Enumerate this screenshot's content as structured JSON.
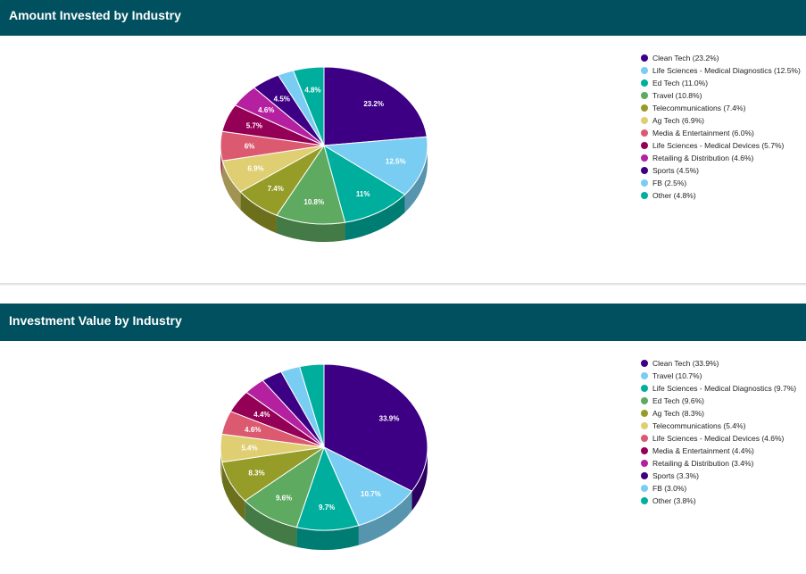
{
  "chart_data": [
    {
      "type": "pie",
      "title": "Amount Invested by Industry",
      "legend_position": "right",
      "series": [
        {
          "name": "Clean Tech",
          "value": 23.2,
          "legend": "Clean Tech (23.2%)",
          "label": "23.2%",
          "color": "#3d0085"
        },
        {
          "name": "Life Sciences - Medical Diagnostics",
          "value": 12.5,
          "legend": "Life Sciences - Medical Diagnostics (12.5%)",
          "label": "12.5%",
          "color": "#79cdf2"
        },
        {
          "name": "Ed Tech",
          "value": 11.0,
          "legend": "Ed Tech (11.0%)",
          "label": "11%",
          "color": "#00ae9e"
        },
        {
          "name": "Travel",
          "value": 10.8,
          "legend": "Travel (10.8%)",
          "label": "10.8%",
          "color": "#5eaa60"
        },
        {
          "name": "Telecommunications",
          "value": 7.4,
          "legend": "Telecommunications (7.4%)",
          "label": "7.4%",
          "color": "#969c28"
        },
        {
          "name": "Ag Tech",
          "value": 6.9,
          "legend": "Ag Tech (6.9%)",
          "label": "6.9%",
          "color": "#dfce72"
        },
        {
          "name": "Media & Entertainment",
          "value": 6.0,
          "legend": "Media & Entertainment (6.0%)",
          "label": "6%",
          "color": "#db5a70"
        },
        {
          "name": "Life Sciences - Medical Devices",
          "value": 5.7,
          "legend": "Life Sciences - Medical Devices (5.7%)",
          "label": "5.7%",
          "color": "#950057"
        },
        {
          "name": "Retailing & Distribution",
          "value": 4.6,
          "legend": "Retailing & Distribution (4.6%)",
          "label": "4.6%",
          "color": "#b520a0"
        },
        {
          "name": "Sports",
          "value": 4.5,
          "legend": "Sports (4.5%)",
          "label": "4.5%",
          "color": "#3d0085"
        },
        {
          "name": "FB",
          "value": 2.5,
          "legend": "FB (2.5%)",
          "label": "",
          "color": "#79cdf2"
        },
        {
          "name": "Other",
          "value": 4.8,
          "legend": "Other (4.8%)",
          "label": "4.8%",
          "color": "#00ae9e"
        }
      ]
    },
    {
      "type": "pie",
      "title": "Investment Value by Industry",
      "legend_position": "right",
      "series": [
        {
          "name": "Clean Tech",
          "value": 33.9,
          "legend": "Clean Tech (33.9%)",
          "label": "33.9%",
          "color": "#3d0085"
        },
        {
          "name": "Travel",
          "value": 10.7,
          "legend": "Travel (10.7%)",
          "label": "10.7%",
          "color": "#79cdf2"
        },
        {
          "name": "Life Sciences - Medical Diagnostics",
          "value": 9.7,
          "legend": "Life Sciences - Medical Diagnostics (9.7%)",
          "label": "9.7%",
          "color": "#00ae9e"
        },
        {
          "name": "Ed Tech",
          "value": 9.6,
          "legend": "Ed Tech (9.6%)",
          "label": "9.6%",
          "color": "#5eaa60"
        },
        {
          "name": "Ag Tech",
          "value": 8.3,
          "legend": "Ag Tech (8.3%)",
          "label": "8.3%",
          "color": "#969c28"
        },
        {
          "name": "Telecommunications",
          "value": 5.4,
          "legend": "Telecommunications (5.4%)",
          "label": "5.4%",
          "color": "#dfce72"
        },
        {
          "name": "Life Sciences - Medical Devices",
          "value": 4.6,
          "legend": "Life Sciences - Medical Devices (4.6%)",
          "label": "4.6%",
          "color": "#db5a70"
        },
        {
          "name": "Media & Entertainment",
          "value": 4.4,
          "legend": "Media & Entertainment (4.4%)",
          "label": "4.4%",
          "color": "#950057"
        },
        {
          "name": "Retailing & Distribution",
          "value": 3.4,
          "legend": "Retailing & Distribution (3.4%)",
          "label": "",
          "color": "#b520a0"
        },
        {
          "name": "Sports",
          "value": 3.3,
          "legend": "Sports (3.3%)",
          "label": "",
          "color": "#3d0085"
        },
        {
          "name": "FB",
          "value": 3.0,
          "legend": "FB (3.0%)",
          "label": "",
          "color": "#79cdf2"
        },
        {
          "name": "Other",
          "value": 3.8,
          "legend": "Other (3.8%)",
          "label": "",
          "color": "#00ae9e"
        }
      ]
    }
  ]
}
